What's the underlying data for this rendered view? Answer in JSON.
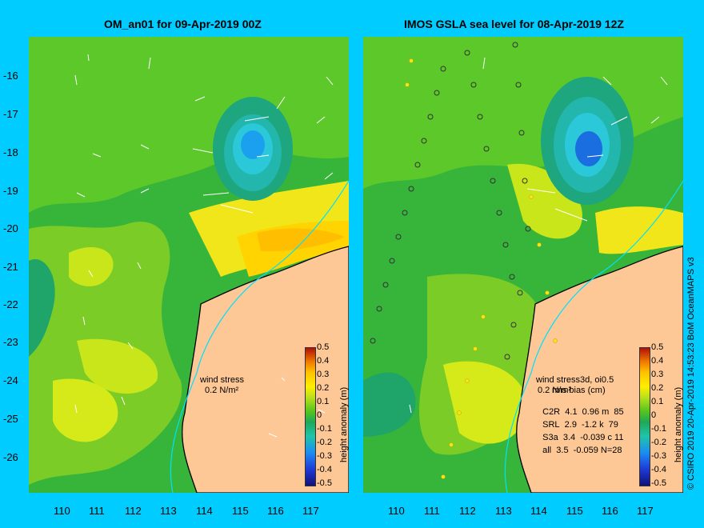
{
  "left": {
    "title": "OM_an01 for 09-Apr-2019 00Z",
    "wind_label": "wind stress",
    "wind_scale": "0.2 N/m²"
  },
  "right": {
    "title": "IMOS GSLA sea level  for 08-Apr-2019 12Z",
    "overlay_title": "wind stress3d, oi0.5",
    "overlay_scale": "0.2 N/m²",
    "stats_header": "rms bias (cm)",
    "stats": [
      {
        "sat": "C2R",
        "vals": "4.1  0.96 m  85"
      },
      {
        "sat": "SRL",
        "vals": "2.9  -1.2 k  79"
      },
      {
        "sat": "S3a",
        "vals": "3.4  -0.039 c 11"
      },
      {
        "sat": "all",
        "vals": "3.5  -0.059 N=28"
      }
    ]
  },
  "lat_ticks": [
    "-16",
    "-17",
    "-18",
    "-19",
    "-20",
    "-21",
    "-22",
    "-23",
    "-24",
    "-25",
    "-26"
  ],
  "lon_ticks": [
    "110",
    "111",
    "112",
    "113",
    "114",
    "115",
    "116",
    "117"
  ],
  "colorbar": {
    "label": "height anomaly (m)",
    "ticks": [
      "0.5",
      "0.4",
      "0.3",
      "0.2",
      "0.1",
      "0",
      "-0.1",
      "-0.2",
      "-0.3",
      "-0.4",
      "-0.5"
    ]
  },
  "credit": "© CSIRO 2019   20-Apr-2019 14:53:23 BoM OceanMAPS v3",
  "colors": {
    "background": "#00ccff",
    "land": "#fdc896",
    "sea_mid": "#30b840",
    "coastline": "#000000",
    "current_line": "#00e0ff"
  }
}
